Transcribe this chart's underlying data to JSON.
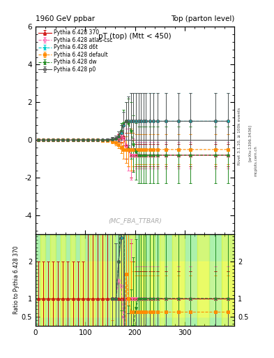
{
  "title_left": "1960 GeV ppbar",
  "title_right": "Top (parton level)",
  "plot_title": "pT (top) (Mtt < 450)",
  "watermark": "(MC_FBA_TTBAR)",
  "ylabel_ratio": "Ratio to Pythia 6.428 370",
  "right_label": "Rivet 3.1.10, ≥ 100k events",
  "arxiv_label": "[arXiv:1306.3436]",
  "mcplots_label": "mcplots.cern.ch",
  "ylim_main": [
    -5,
    6
  ],
  "ylim_ratio": [
    0.25,
    2.75
  ],
  "yticks_main": [
    -4,
    -2,
    0,
    2,
    4,
    6
  ],
  "yticks_ratio_left": [
    "0.5",
    "1",
    "2"
  ],
  "yticks_ratio_vals": [
    0.5,
    1.0,
    2.0
  ],
  "xlim": [
    0,
    400
  ],
  "xticks": [
    0,
    100,
    200,
    300
  ],
  "bin_edges": [
    0,
    10,
    20,
    30,
    40,
    50,
    60,
    70,
    80,
    90,
    100,
    110,
    120,
    130,
    140,
    150,
    160,
    170,
    180,
    190,
    200,
    210,
    220,
    230,
    240,
    250,
    260,
    275,
    300,
    325,
    350,
    375,
    400
  ],
  "series": [
    {
      "label": "Pythia 6.428 370",
      "color": "#cc0000",
      "linestyle": "-",
      "marker": "^",
      "mfc": "none",
      "x": [
        5,
        15,
        25,
        35,
        45,
        55,
        65,
        75,
        85,
        95,
        105,
        115,
        125,
        135,
        145,
        155,
        162,
        167,
        172,
        177,
        182,
        187,
        192,
        197,
        202,
        207,
        212,
        217,
        222,
        230,
        237,
        245,
        262,
        287,
        312,
        362,
        387
      ],
      "y": [
        0,
        0,
        0,
        0,
        0,
        0,
        0,
        0,
        0,
        0,
        0,
        0,
        0,
        0,
        0,
        0.05,
        0.1,
        0.1,
        0.15,
        0.2,
        -0.3,
        -0.5,
        -0.8,
        -0.8,
        -0.8,
        -0.8,
        -0.8,
        -0.8,
        -0.8,
        -0.8,
        -0.8,
        -0.8,
        -0.8,
        -0.8,
        -0.8,
        -0.8,
        -0.8
      ],
      "yerr": [
        0.02,
        0.02,
        0.02,
        0.02,
        0.02,
        0.02,
        0.02,
        0.02,
        0.02,
        0.02,
        0.04,
        0.04,
        0.05,
        0.06,
        0.07,
        0.1,
        0.15,
        0.2,
        0.3,
        0.5,
        0.7,
        0.9,
        1.2,
        0.8,
        0.6,
        0.6,
        0.6,
        0.6,
        0.6,
        0.6,
        0.6,
        0.6,
        0.6,
        0.6,
        0.6,
        0.6,
        0.6
      ]
    },
    {
      "label": "Pythia 6.428 atlas-csc",
      "color": "#ff69b4",
      "linestyle": "--",
      "marker": "o",
      "mfc": "none",
      "x": [
        5,
        15,
        25,
        35,
        45,
        55,
        65,
        75,
        85,
        95,
        105,
        115,
        125,
        135,
        145,
        155,
        162,
        167,
        172,
        177,
        182,
        187,
        192,
        197,
        202,
        207,
        212,
        217,
        222,
        230,
        237,
        245,
        262,
        287,
        312,
        362,
        387
      ],
      "y": [
        0,
        0,
        0,
        0,
        0,
        0,
        0,
        0,
        0,
        0,
        0,
        0,
        0,
        0,
        0.02,
        0.05,
        0.1,
        0.15,
        0.2,
        0.1,
        -0.3,
        -0.5,
        -0.8,
        -0.8,
        -0.8,
        -0.8,
        -0.8,
        -0.8,
        -0.8,
        -0.8,
        -0.8,
        -0.8,
        -0.8,
        -0.8,
        -0.8,
        -0.8,
        -0.8
      ],
      "yerr": [
        0.02,
        0.02,
        0.02,
        0.02,
        0.02,
        0.02,
        0.02,
        0.02,
        0.02,
        0.02,
        0.04,
        0.04,
        0.05,
        0.06,
        0.07,
        0.1,
        0.15,
        0.2,
        0.3,
        0.6,
        0.9,
        1.1,
        1.3,
        0.9,
        0.7,
        0.7,
        0.7,
        0.7,
        0.7,
        0.7,
        0.7,
        0.7,
        0.7,
        0.7,
        0.7,
        0.7,
        0.7
      ]
    },
    {
      "label": "Pythia 6.428 d6t",
      "color": "#00cccc",
      "linestyle": "--",
      "marker": "*",
      "mfc": "#00cccc",
      "x": [
        5,
        15,
        25,
        35,
        45,
        55,
        65,
        75,
        85,
        95,
        105,
        115,
        125,
        135,
        145,
        155,
        162,
        167,
        172,
        177,
        182,
        187,
        192,
        197,
        202,
        207,
        212,
        217,
        222,
        230,
        237,
        245,
        262,
        287,
        312,
        362,
        387
      ],
      "y": [
        0,
        0,
        0,
        0,
        0,
        0,
        0,
        0,
        0,
        0,
        0,
        0,
        0,
        0,
        0.02,
        0.05,
        0.1,
        0.2,
        0.4,
        0.8,
        1.0,
        1.0,
        1.0,
        1.0,
        1.0,
        1.0,
        1.0,
        1.0,
        1.0,
        1.0,
        1.0,
        1.0,
        1.0,
        1.0,
        1.0,
        1.0,
        1.0
      ],
      "yerr": [
        0.02,
        0.02,
        0.02,
        0.02,
        0.02,
        0.02,
        0.02,
        0.02,
        0.02,
        0.02,
        0.04,
        0.04,
        0.05,
        0.06,
        0.07,
        0.1,
        0.15,
        0.25,
        0.4,
        0.7,
        1.0,
        1.3,
        1.5,
        1.5,
        1.5,
        1.5,
        1.5,
        1.5,
        1.5,
        1.5,
        1.5,
        1.5,
        1.5,
        1.5,
        1.5,
        1.5,
        1.5
      ]
    },
    {
      "label": "Pythia 6.428 default",
      "color": "#ff8c00",
      "linestyle": "--",
      "marker": "s",
      "mfc": "#ff8c00",
      "x": [
        5,
        15,
        25,
        35,
        45,
        55,
        65,
        75,
        85,
        95,
        105,
        115,
        125,
        135,
        145,
        155,
        162,
        167,
        172,
        177,
        182,
        187,
        192,
        197,
        202,
        207,
        212,
        217,
        222,
        230,
        237,
        245,
        262,
        287,
        312,
        362,
        387
      ],
      "y": [
        0,
        0,
        0,
        0,
        0,
        0,
        0,
        0,
        0,
        0,
        0,
        0,
        0,
        -0.02,
        -0.04,
        -0.08,
        -0.15,
        -0.25,
        -0.4,
        -0.5,
        -0.5,
        -0.5,
        -0.5,
        -0.5,
        -0.5,
        -0.5,
        -0.5,
        -0.5,
        -0.5,
        -0.5,
        -0.5,
        -0.5,
        -0.5,
        -0.5,
        -0.5,
        -0.5,
        -0.5
      ],
      "yerr": [
        0.02,
        0.02,
        0.02,
        0.02,
        0.02,
        0.02,
        0.02,
        0.02,
        0.02,
        0.02,
        0.04,
        0.04,
        0.05,
        0.06,
        0.07,
        0.1,
        0.15,
        0.2,
        0.3,
        0.5,
        0.7,
        0.9,
        1.1,
        0.9,
        0.8,
        0.8,
        0.8,
        0.8,
        0.8,
        0.8,
        0.8,
        0.8,
        0.8,
        0.8,
        0.8,
        0.8,
        0.8
      ]
    },
    {
      "label": "Pythia 6.428 dw",
      "color": "#228B22",
      "linestyle": "--",
      "marker": "*",
      "mfc": "#228B22",
      "x": [
        5,
        15,
        25,
        35,
        45,
        55,
        65,
        75,
        85,
        95,
        105,
        115,
        125,
        135,
        145,
        155,
        162,
        167,
        172,
        177,
        182,
        187,
        192,
        197,
        202,
        207,
        212,
        217,
        222,
        230,
        237,
        245,
        262,
        287,
        312,
        362,
        387
      ],
      "y": [
        0,
        0,
        0,
        0,
        0,
        0,
        0,
        0,
        0,
        0,
        0,
        0,
        0,
        0,
        0.02,
        0.05,
        0.1,
        0.2,
        0.5,
        0.9,
        1.0,
        0.9,
        0.5,
        -0.2,
        -0.6,
        -0.8,
        -0.8,
        -0.8,
        -0.8,
        -0.8,
        -0.8,
        -0.8,
        -0.8,
        -0.8,
        -0.8,
        -0.8,
        -0.8
      ],
      "yerr": [
        0.02,
        0.02,
        0.02,
        0.02,
        0.02,
        0.02,
        0.02,
        0.02,
        0.02,
        0.02,
        0.04,
        0.04,
        0.05,
        0.06,
        0.07,
        0.1,
        0.15,
        0.25,
        0.4,
        0.7,
        1.0,
        1.3,
        1.5,
        1.5,
        1.5,
        1.5,
        1.5,
        1.5,
        1.5,
        1.5,
        1.5,
        1.5,
        1.5,
        1.5,
        1.5,
        1.5,
        1.5
      ]
    },
    {
      "label": "Pythia 6.428 p0",
      "color": "#555555",
      "linestyle": "-",
      "marker": "o",
      "mfc": "none",
      "x": [
        5,
        15,
        25,
        35,
        45,
        55,
        65,
        75,
        85,
        95,
        105,
        115,
        125,
        135,
        145,
        155,
        162,
        167,
        172,
        177,
        182,
        187,
        192,
        197,
        202,
        207,
        212,
        217,
        222,
        230,
        237,
        245,
        262,
        287,
        312,
        362,
        387
      ],
      "y": [
        0,
        0,
        0,
        0,
        0,
        0,
        0,
        0,
        0,
        0,
        0,
        0,
        0,
        0,
        0.02,
        0.05,
        0.1,
        0.2,
        0.4,
        0.8,
        1.0,
        1.0,
        1.0,
        1.0,
        1.0,
        1.0,
        1.0,
        1.0,
        1.0,
        1.0,
        1.0,
        1.0,
        1.0,
        1.0,
        1.0,
        1.0,
        1.0
      ],
      "yerr": [
        0.02,
        0.02,
        0.02,
        0.02,
        0.02,
        0.02,
        0.02,
        0.02,
        0.02,
        0.02,
        0.04,
        0.04,
        0.05,
        0.06,
        0.07,
        0.1,
        0.15,
        0.25,
        0.4,
        0.7,
        1.0,
        1.3,
        1.5,
        1.5,
        1.5,
        1.5,
        1.5,
        1.5,
        1.5,
        1.5,
        1.5,
        1.5,
        1.5,
        1.5,
        1.5,
        1.5,
        1.5
      ]
    }
  ]
}
